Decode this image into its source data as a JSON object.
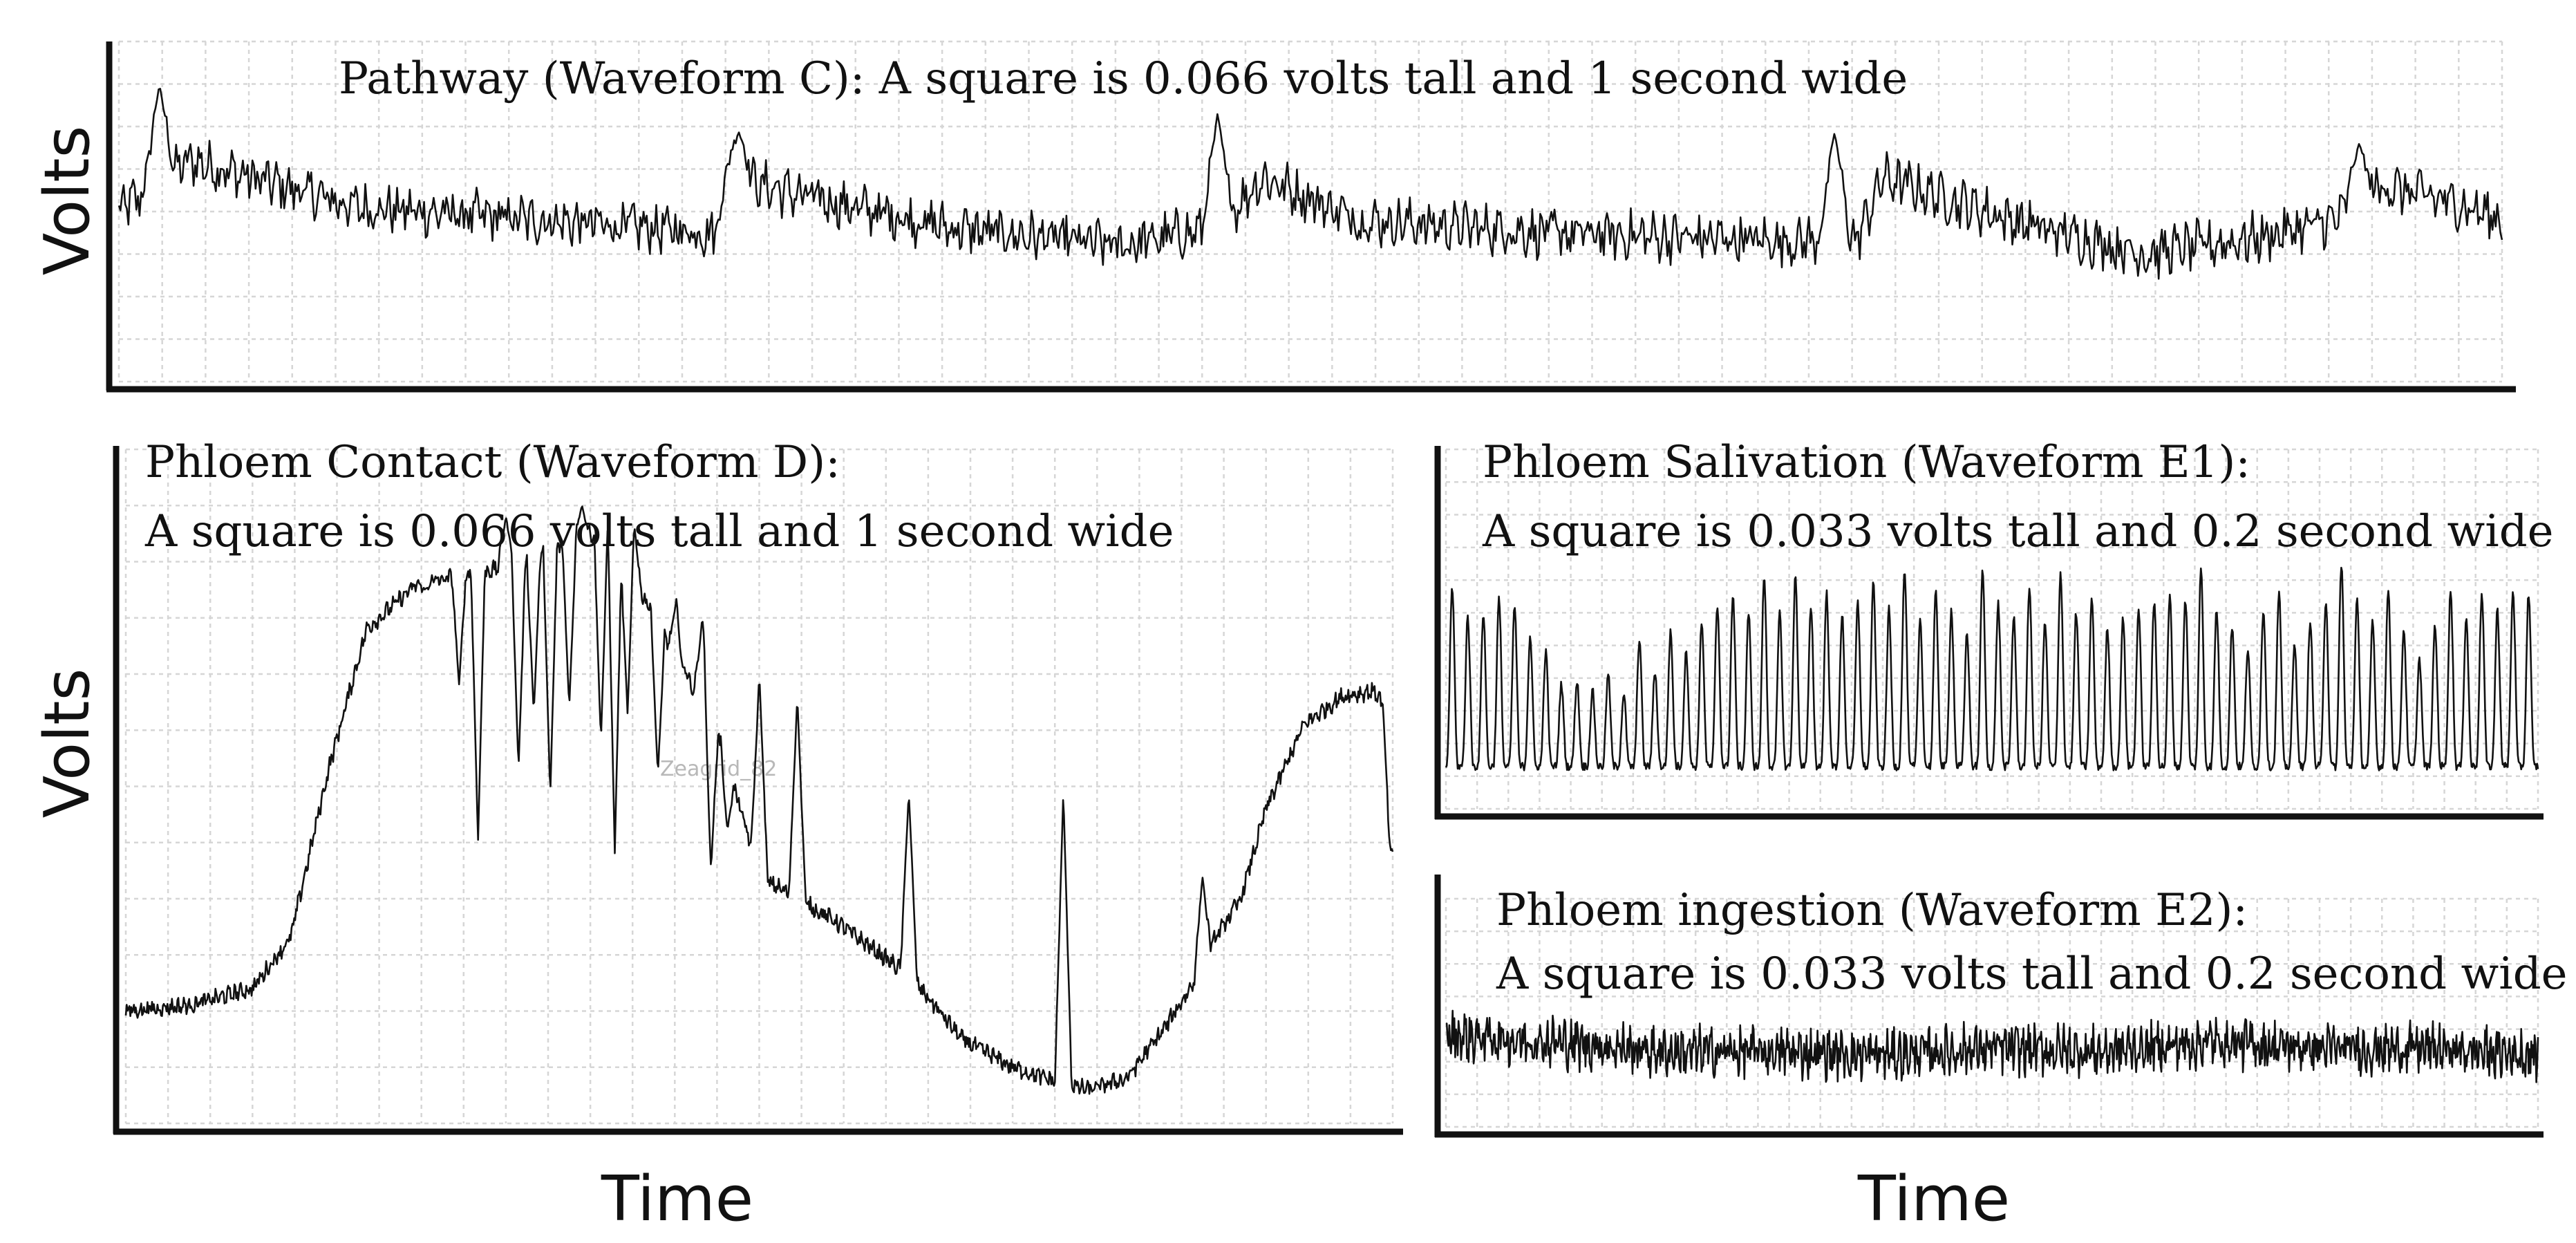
{
  "figure": {
    "y_axis_label": "Volts",
    "x_axis_label": "Time",
    "watermark": "Zeagrid_82"
  },
  "chart_data": [
    {
      "id": "pathway",
      "type": "line",
      "title": "Pathway (Waveform C): A square is 0.066 volts tall and 1 second wide",
      "title_lines": [
        "Pathway (Waveform C): A square is 0.066 volts tall and 1 second wide"
      ],
      "xlabel": "",
      "ylabel": "Volts",
      "grid": true,
      "scale": {
        "volts_per_square": 0.066,
        "seconds_per_square": 1
      },
      "x_squares": 55,
      "y_squares": 8,
      "ylim": [
        0,
        8
      ],
      "n_points": 1500,
      "trace_style": "noisy",
      "noise_amplitude": 0.45,
      "baseline_anchors": [
        [
          0,
          4.0
        ],
        [
          0.03,
          5.2
        ],
        [
          0.1,
          4.1
        ],
        [
          0.25,
          3.5
        ],
        [
          0.255,
          4.8
        ],
        [
          0.3,
          4.2
        ],
        [
          0.35,
          3.6
        ],
        [
          0.42,
          3.2
        ],
        [
          0.46,
          3.6
        ],
        [
          0.48,
          4.8
        ],
        [
          0.52,
          3.8
        ],
        [
          0.6,
          3.5
        ],
        [
          0.7,
          3.3
        ],
        [
          0.73,
          3.4
        ],
        [
          0.74,
          4.8
        ],
        [
          0.8,
          3.7
        ],
        [
          0.85,
          3.0
        ],
        [
          0.9,
          3.4
        ],
        [
          0.93,
          3.8
        ],
        [
          0.95,
          4.6
        ],
        [
          0.98,
          4.2
        ],
        [
          1.0,
          3.8
        ]
      ],
      "spikes": [
        [
          0.017,
          7.0
        ],
        [
          0.26,
          5.9
        ],
        [
          0.461,
          6.3
        ],
        [
          0.72,
          5.9
        ],
        [
          0.94,
          5.6
        ]
      ]
    },
    {
      "id": "phloem-contact",
      "type": "line",
      "title": "Phloem Contact (Waveform D): A square is 0.066 volts tall and 1 second wide",
      "title_lines": [
        "Phloem Contact (Waveform D):",
        "A square is 0.066 volts tall and 1 second wide"
      ],
      "xlabel": "Time",
      "ylabel": "Volts",
      "grid": true,
      "scale": {
        "volts_per_square": 0.066,
        "seconds_per_square": 1
      },
      "x_squares": 30,
      "y_squares": 12,
      "ylim": [
        0,
        12
      ],
      "n_points": 1400,
      "trace_style": "noisy",
      "noise_amplitude": 0.12,
      "baseline_anchors": [
        [
          0,
          2.0
        ],
        [
          0.05,
          2.1
        ],
        [
          0.1,
          2.4
        ],
        [
          0.13,
          3.3
        ],
        [
          0.16,
          6.3
        ],
        [
          0.19,
          8.8
        ],
        [
          0.23,
          9.6
        ],
        [
          0.3,
          9.9
        ],
        [
          0.38,
          10.6
        ],
        [
          0.42,
          8.9
        ],
        [
          0.47,
          6.8
        ],
        [
          0.5,
          4.4
        ],
        [
          0.56,
          3.6
        ],
        [
          0.62,
          2.6
        ],
        [
          0.66,
          1.5
        ],
        [
          0.7,
          1.0
        ],
        [
          0.74,
          0.7
        ],
        [
          0.76,
          0.6
        ],
        [
          0.79,
          0.8
        ],
        [
          0.82,
          1.7
        ],
        [
          0.84,
          2.4
        ],
        [
          0.86,
          3.3
        ],
        [
          0.88,
          4.0
        ],
        [
          0.9,
          5.6
        ],
        [
          0.93,
          7.1
        ],
        [
          0.96,
          7.6
        ],
        [
          0.985,
          7.7
        ],
        [
          0.992,
          7.5
        ],
        [
          0.998,
          4.8
        ],
        [
          1.0,
          4.7
        ]
      ],
      "dips": [
        [
          0.236,
          9.5
        ],
        [
          0.263,
          7.8
        ],
        [
          0.278,
          5.0
        ],
        [
          0.31,
          6.3
        ],
        [
          0.322,
          7.3
        ],
        [
          0.335,
          5.8
        ],
        [
          0.35,
          7.4
        ],
        [
          0.375,
          6.8
        ],
        [
          0.386,
          4.8
        ],
        [
          0.396,
          7.3
        ],
        [
          0.42,
          6.2
        ],
        [
          0.44,
          8.1
        ],
        [
          0.462,
          4.5
        ],
        [
          0.475,
          5.2
        ]
      ],
      "spikes": [
        [
          0.3,
          10.8
        ],
        [
          0.36,
          11.0
        ],
        [
          0.4,
          10.9
        ],
        [
          0.435,
          9.4
        ],
        [
          0.455,
          9.0
        ],
        [
          0.5,
          8.0
        ],
        [
          0.53,
          7.6
        ],
        [
          0.618,
          5.9
        ],
        [
          0.74,
          5.9
        ],
        [
          0.85,
          4.4
        ]
      ]
    },
    {
      "id": "phloem-salivation",
      "type": "line",
      "title": "Phloem Salivation (Waveform E1): A square is 0.033 volts tall and 0.2 second wide",
      "title_lines": [
        "Phloem Salivation (Waveform E1):",
        "A square is 0.033 volts tall and 0.2 second wide"
      ],
      "xlabel": "Time",
      "ylabel": "",
      "grid": true,
      "scale": {
        "volts_per_square": 0.033,
        "seconds_per_square": 0.2
      },
      "x_squares": 35,
      "y_squares": 11,
      "ylim": [
        0,
        11
      ],
      "n_points": 1300,
      "trace_style": "periodic",
      "base_level": 1.3,
      "peak_levels": [
        6.8,
        5.9,
        6.0,
        6.4,
        6.2,
        5.3,
        4.8,
        3.8,
        3.9,
        3.6,
        4.1,
        3.5,
        5.2,
        4.2,
        5.4,
        4.8,
        5.7,
        6.2,
        6.5,
        6.0,
        7.1,
        6.0,
        7.1,
        6.2,
        6.6,
        5.9,
        6.3,
        6.9,
        6.1,
        7.3,
        5.8,
        6.6,
        6.1,
        5.4,
        7.3,
        6.3,
        5.9,
        6.8,
        5.7,
        7.2,
        6.0,
        6.4,
        5.5,
        5.8,
        6.1,
        6.3,
        6.5,
        6.4,
        7.3,
        6.1,
        5.6,
        4.9,
        6.1,
        6.6,
        5.0,
        5.8,
        6.4,
        7.5,
        6.4,
        5.7,
        6.7,
        5.5,
        4.6,
        5.6,
        6.7,
        5.9,
        6.6,
        6.1,
        6.7,
        6.6
      ]
    },
    {
      "id": "phloem-ingestion",
      "type": "line",
      "title": "Phloem ingestion (Waveform E2): A square is 0.033 volts tall and 0.2 second wide",
      "title_lines": [
        "Phloem ingestion (Waveform E2):",
        "A square is 0.033 volts tall and 0.2 second wide"
      ],
      "xlabel": "Time",
      "ylabel": "",
      "grid": true,
      "scale": {
        "volts_per_square": 0.033,
        "seconds_per_square": 0.2
      },
      "x_squares": 35,
      "y_squares": 7,
      "ylim": [
        0,
        7
      ],
      "n_points": 1300,
      "trace_style": "noisy",
      "noise_amplitude": 0.6,
      "baseline_anchors": [
        [
          0,
          2.8
        ],
        [
          0.1,
          2.6
        ],
        [
          0.2,
          2.3
        ],
        [
          0.3,
          2.3
        ],
        [
          0.4,
          2.2
        ],
        [
          0.5,
          2.4
        ],
        [
          0.6,
          2.3
        ],
        [
          0.7,
          2.6
        ],
        [
          0.8,
          2.4
        ],
        [
          0.9,
          2.4
        ],
        [
          1.0,
          2.2
        ]
      ],
      "spikes": []
    }
  ]
}
